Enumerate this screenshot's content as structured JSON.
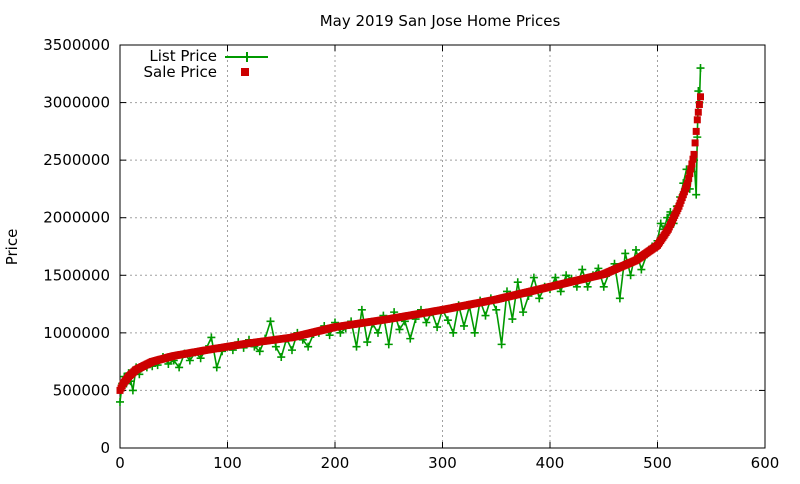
{
  "chart_data": {
    "type": "scatter",
    "title": "May 2019 San Jose Home Prices",
    "xlabel": "",
    "ylabel": "Price",
    "xlim": [
      0,
      600
    ],
    "ylim": [
      0,
      3500000
    ],
    "xticks": [
      0,
      100,
      200,
      300,
      400,
      500,
      600
    ],
    "yticks": [
      0,
      500000,
      1000000,
      1500000,
      2000000,
      2500000,
      3000000,
      3500000
    ],
    "grid": true,
    "legend_position": "top-left",
    "series": [
      {
        "name": "List Price",
        "style": "linespoints-plus",
        "color": "#009900",
        "points": [
          [
            0,
            400000
          ],
          [
            2,
            560000
          ],
          [
            4,
            620000
          ],
          [
            6,
            560000
          ],
          [
            8,
            650000
          ],
          [
            10,
            580000
          ],
          [
            12,
            500000
          ],
          [
            15,
            700000
          ],
          [
            18,
            640000
          ],
          [
            20,
            690000
          ],
          [
            25,
            700000
          ],
          [
            30,
            710000
          ],
          [
            35,
            720000
          ],
          [
            40,
            790000
          ],
          [
            45,
            730000
          ],
          [
            50,
            760000
          ],
          [
            55,
            700000
          ],
          [
            60,
            820000
          ],
          [
            65,
            760000
          ],
          [
            70,
            830000
          ],
          [
            75,
            780000
          ],
          [
            80,
            860000
          ],
          [
            85,
            960000
          ],
          [
            90,
            700000
          ],
          [
            95,
            840000
          ],
          [
            100,
            880000
          ],
          [
            105,
            850000
          ],
          [
            110,
            920000
          ],
          [
            115,
            870000
          ],
          [
            120,
            940000
          ],
          [
            125,
            880000
          ],
          [
            130,
            840000
          ],
          [
            135,
            950000
          ],
          [
            140,
            1100000
          ],
          [
            145,
            880000
          ],
          [
            150,
            790000
          ],
          [
            155,
            950000
          ],
          [
            160,
            850000
          ],
          [
            165,
            1000000
          ],
          [
            170,
            940000
          ],
          [
            175,
            880000
          ],
          [
            180,
            990000
          ],
          [
            185,
            1000000
          ],
          [
            190,
            1060000
          ],
          [
            195,
            980000
          ],
          [
            200,
            1090000
          ],
          [
            205,
            1000000
          ],
          [
            210,
            1040000
          ],
          [
            215,
            1100000
          ],
          [
            220,
            880000
          ],
          [
            225,
            1200000
          ],
          [
            230,
            920000
          ],
          [
            235,
            1080000
          ],
          [
            240,
            1000000
          ],
          [
            245,
            1150000
          ],
          [
            250,
            900000
          ],
          [
            255,
            1180000
          ],
          [
            260,
            1030000
          ],
          [
            265,
            1100000
          ],
          [
            270,
            950000
          ],
          [
            275,
            1120000
          ],
          [
            280,
            1200000
          ],
          [
            285,
            1090000
          ],
          [
            290,
            1180000
          ],
          [
            295,
            1050000
          ],
          [
            300,
            1200000
          ],
          [
            305,
            1110000
          ],
          [
            310,
            1000000
          ],
          [
            315,
            1240000
          ],
          [
            320,
            1060000
          ],
          [
            325,
            1230000
          ],
          [
            330,
            1000000
          ],
          [
            335,
            1280000
          ],
          [
            340,
            1150000
          ],
          [
            345,
            1300000
          ],
          [
            350,
            1200000
          ],
          [
            355,
            900000
          ],
          [
            360,
            1360000
          ],
          [
            365,
            1120000
          ],
          [
            370,
            1440000
          ],
          [
            375,
            1180000
          ],
          [
            380,
            1320000
          ],
          [
            385,
            1480000
          ],
          [
            390,
            1300000
          ],
          [
            395,
            1400000
          ],
          [
            400,
            1380000
          ],
          [
            405,
            1480000
          ],
          [
            410,
            1360000
          ],
          [
            415,
            1500000
          ],
          [
            420,
            1470000
          ],
          [
            425,
            1400000
          ],
          [
            430,
            1550000
          ],
          [
            435,
            1400000
          ],
          [
            440,
            1500000
          ],
          [
            445,
            1560000
          ],
          [
            450,
            1400000
          ],
          [
            455,
            1520000
          ],
          [
            460,
            1600000
          ],
          [
            465,
            1300000
          ],
          [
            470,
            1690000
          ],
          [
            475,
            1500000
          ],
          [
            480,
            1720000
          ],
          [
            485,
            1550000
          ],
          [
            490,
            1680000
          ],
          [
            495,
            1750000
          ],
          [
            500,
            1800000
          ],
          [
            503,
            1950000
          ],
          [
            506,
            1900000
          ],
          [
            509,
            2000000
          ],
          [
            512,
            2050000
          ],
          [
            515,
            1950000
          ],
          [
            518,
            2100000
          ],
          [
            521,
            2180000
          ],
          [
            524,
            2300000
          ],
          [
            527,
            2420000
          ],
          [
            530,
            2250000
          ],
          [
            532,
            2400000
          ],
          [
            534,
            2500000
          ],
          [
            536,
            2200000
          ],
          [
            537,
            2700000
          ],
          [
            538,
            3100000
          ],
          [
            539,
            3000000
          ],
          [
            540,
            3300000
          ]
        ]
      },
      {
        "name": "Sale Price",
        "style": "points-square",
        "color": "#cc0000",
        "curve": [
          [
            0,
            500000
          ],
          [
            3,
            560000
          ],
          [
            8,
            620000
          ],
          [
            15,
            680000
          ],
          [
            30,
            750000
          ],
          [
            50,
            800000
          ],
          [
            80,
            850000
          ],
          [
            120,
            910000
          ],
          [
            160,
            960000
          ],
          [
            200,
            1050000
          ],
          [
            250,
            1120000
          ],
          [
            300,
            1200000
          ],
          [
            350,
            1290000
          ],
          [
            400,
            1400000
          ],
          [
            450,
            1510000
          ],
          [
            480,
            1630000
          ],
          [
            500,
            1760000
          ],
          [
            510,
            1900000
          ],
          [
            520,
            2100000
          ],
          [
            528,
            2300000
          ],
          [
            534,
            2550000
          ],
          [
            537,
            2850000
          ],
          [
            540,
            3050000
          ]
        ],
        "count": 540
      }
    ]
  }
}
